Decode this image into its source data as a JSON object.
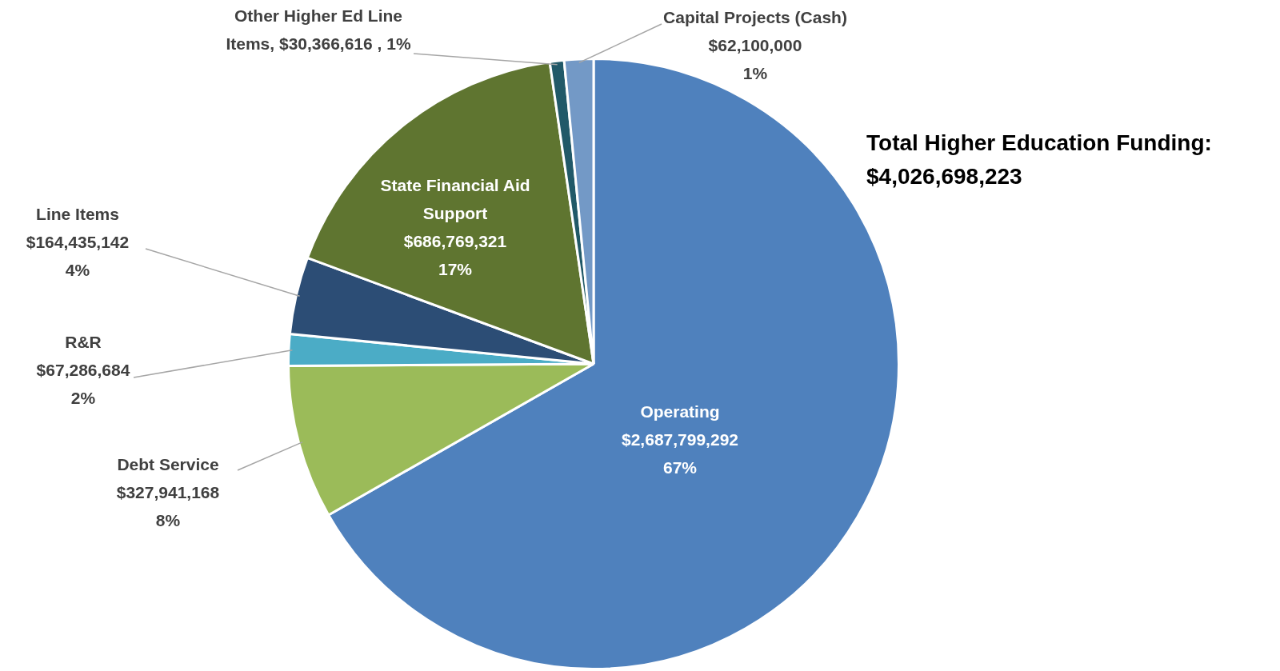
{
  "chart_data": {
    "type": "pie",
    "categories": [
      "Operating",
      "Debt Service",
      "R&R",
      "Line Items",
      "State Financial Aid Support",
      "Other Higher Ed Line Items",
      "Capital Projects (Cash)"
    ],
    "values": [
      2687799292,
      327941168,
      67286684,
      164435142,
      686769321,
      30366616,
      62100000
    ],
    "colors": [
      "#4f81bd",
      "#9bbb59",
      "#4bacc6",
      "#2c4d75",
      "#5f7530",
      "#215968",
      "#7399c6"
    ],
    "value_labels": [
      "$2,687,799,292\n67%",
      "$327,941,168\n8%",
      "$67,286,684\n2%",
      "$164,435,142\n4%",
      "$686,769,321\n17%",
      "$30,366,616 , 1%",
      "$62,100,000\n1%"
    ],
    "annotations": [
      "Total Higher Education Funding:\n$4,026,698,223"
    ],
    "legend": false
  }
}
